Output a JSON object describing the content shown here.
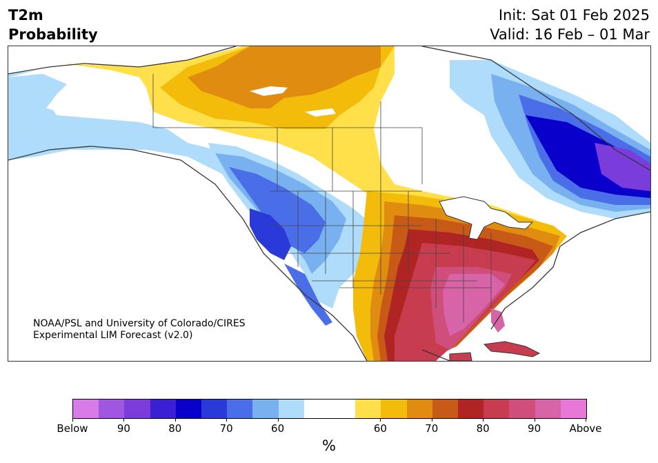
{
  "header": {
    "title_line1": "T2m",
    "title_line2": "Probability",
    "init": "Init: Sat 01 Feb 2025",
    "valid": "Valid: 16 Feb – 01 Mar"
  },
  "credit": {
    "line1": "NOAA/PSL and University of Colorado/CIRES",
    "line2": "Experimental LIM Forecast (v2.0)"
  },
  "colorbar": {
    "colors": [
      "#d87ae8",
      "#a056e0",
      "#7a3ddc",
      "#3a1fd4",
      "#0a00cc",
      "#2a3ad8",
      "#4a6ee8",
      "#78b0f0",
      "#aedcfa",
      "#ffffff",
      "#ffffff",
      "#ffe04a",
      "#f4bc0a",
      "#e08c10",
      "#c85a18",
      "#b02424",
      "#c83c50",
      "#d04e7c",
      "#d864a8",
      "#e878d8"
    ],
    "labels": [
      "Below",
      "90",
      "80",
      "70",
      "60",
      "60",
      "70",
      "80",
      "90",
      "Above"
    ],
    "unit": "%"
  },
  "legend_colors": {
    "below_extreme": "#d87ae8",
    "below_strong": "#0a00cc",
    "below_weak": "#aedcfa",
    "neutral": "#ffffff",
    "above_weak": "#ffe04a",
    "above_mid": "#e08c10",
    "above_strong": "#b02424",
    "above_extreme": "#e878d8"
  }
}
